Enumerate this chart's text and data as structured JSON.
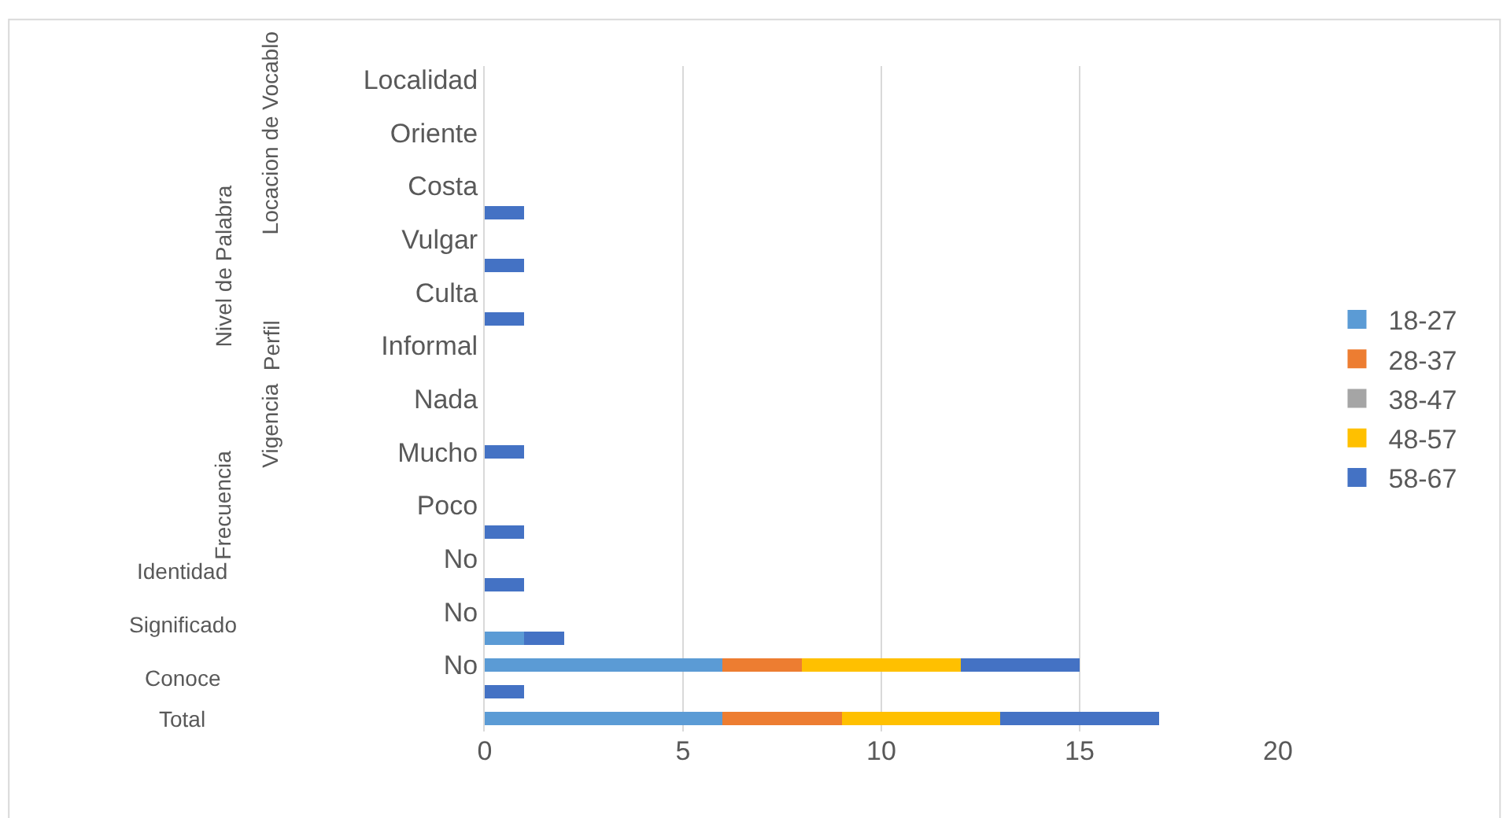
{
  "chart_data": {
    "type": "bar",
    "orientation": "horizontal",
    "stacked": true,
    "categories": [
      "Localidad",
      null,
      "Oriente",
      null,
      "Costa",
      null,
      "Vulgar",
      null,
      "Culta",
      null,
      "Informal",
      null,
      "Nada",
      null,
      "Mucho",
      null,
      "Poco",
      null,
      "No",
      null,
      "No",
      null,
      "No",
      null,
      null
    ],
    "series": [
      {
        "name": "18-27",
        "color": "#5b9bd5",
        "values": [
          null,
          null,
          null,
          null,
          null,
          null,
          null,
          null,
          null,
          null,
          null,
          null,
          null,
          null,
          null,
          null,
          null,
          null,
          null,
          null,
          null,
          1,
          6,
          null,
          6
        ]
      },
      {
        "name": "28-37",
        "color": "#ed7d31",
        "values": [
          null,
          null,
          null,
          null,
          null,
          null,
          null,
          null,
          null,
          null,
          null,
          null,
          null,
          null,
          null,
          null,
          null,
          null,
          null,
          null,
          null,
          null,
          2,
          null,
          3
        ]
      },
      {
        "name": "38-47",
        "color": "#a5a5a5",
        "values": [
          null,
          null,
          null,
          null,
          null,
          null,
          null,
          null,
          null,
          null,
          null,
          null,
          null,
          null,
          null,
          null,
          null,
          null,
          null,
          null,
          null,
          null,
          null,
          null,
          null
        ]
      },
      {
        "name": "48-57",
        "color": "#ffc000",
        "values": [
          null,
          null,
          null,
          null,
          null,
          null,
          null,
          null,
          null,
          null,
          null,
          null,
          null,
          null,
          null,
          null,
          null,
          null,
          null,
          null,
          null,
          null,
          4,
          null,
          4
        ]
      },
      {
        "name": "58-67",
        "color": "#4472c4",
        "values": [
          null,
          null,
          null,
          null,
          null,
          1,
          null,
          1,
          null,
          1,
          null,
          null,
          null,
          null,
          1,
          null,
          null,
          1,
          null,
          1,
          null,
          1,
          3,
          1,
          4
        ]
      }
    ],
    "xlim": [
      0,
      20
    ],
    "xticks": [
      0,
      5,
      10,
      15,
      20
    ],
    "grid": "x",
    "legend": "right",
    "annotations": [
      "Locacion de Vocablo",
      "Nivel de Palabra",
      "Perfil",
      "Vigencia",
      "Frecuencia",
      "Identidad",
      "Significado",
      "Conoce",
      "Total"
    ]
  }
}
